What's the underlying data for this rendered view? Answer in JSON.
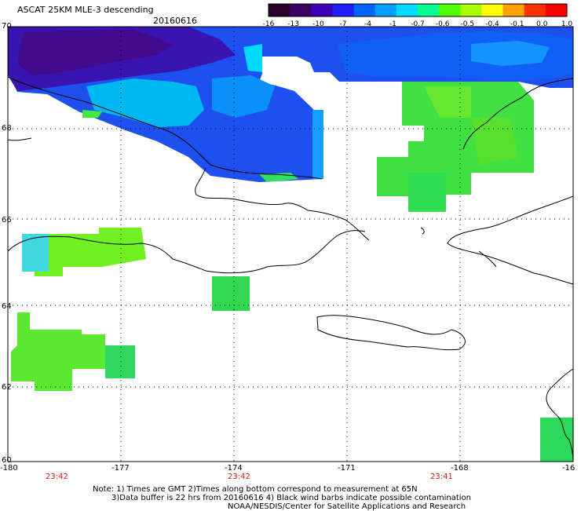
{
  "header": {
    "title": "ASCAT 25KM MLE-3 descending",
    "date": "20160616"
  },
  "colorbar": {
    "labels": [
      "-16",
      "-13",
      "-10",
      "-7",
      "-4",
      "-1",
      "-0.7",
      "-0.6",
      "-0.5",
      "-0.4",
      "-0.1",
      "0.0",
      "1.0"
    ],
    "colors": [
      "#280028",
      "#3c0064",
      "#3a00b4",
      "#1e1eff",
      "#0064ff",
      "#00a0ff",
      "#00dcff",
      "#00ff90",
      "#50ff00",
      "#a8ff00",
      "#ffff00",
      "#ffa000",
      "#ff3000",
      "#ff0000"
    ]
  },
  "map": {
    "lat_labels": [
      "70",
      "68",
      "66",
      "64",
      "62",
      "60"
    ],
    "lon_labels": [
      "-180",
      "-177",
      "-174",
      "-171",
      "-168",
      "-16"
    ],
    "time_labels": [
      "23:42",
      "23:42",
      "23:41"
    ]
  },
  "notes": {
    "line1": "Note: 1) Times are GMT 2)Times along bottom correspond to measurement at 65N",
    "line2": "3)Data buffer is 22 hrs from 20160616 4) Black wind barbs indicate possible contamination",
    "line3": "NOAA/NESDIS/Center for Satellite Applications and Research"
  }
}
